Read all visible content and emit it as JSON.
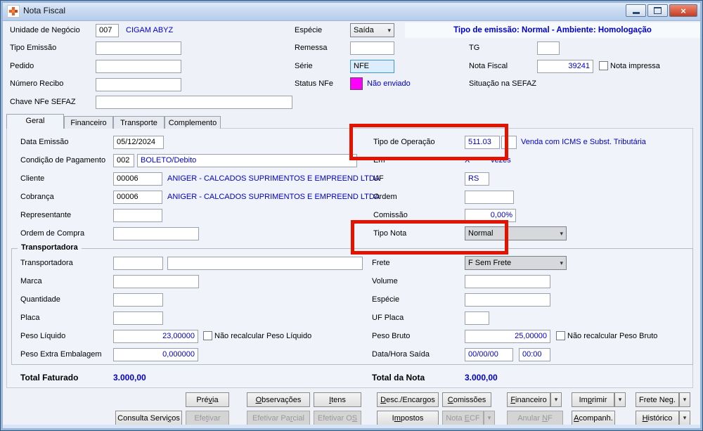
{
  "window": {
    "title": "Nota Fiscal",
    "banner": "Tipo de emissão: Normal - Ambiente: Homologação"
  },
  "header": {
    "unidade_label": "Unidade de Negócio",
    "unidade_code": "007",
    "unidade_name": "CIGAM ABYZ",
    "especie_label": "Espécie",
    "especie_value": "Saída",
    "tipo_emissao_label": "Tipo Emissão",
    "tipo_emissao_value": "",
    "remessa_label": "Remessa",
    "remessa_value": "",
    "tg_label": "TG",
    "tg_value": "",
    "pedido_label": "Pedido",
    "pedido_value": "",
    "serie_label": "Série",
    "serie_value": "NFE",
    "nota_fiscal_label": "Nota Fiscal",
    "nota_fiscal_value": "39241",
    "nota_impressa_label": "Nota impressa",
    "numero_recibo_label": "Número Recibo",
    "numero_recibo_value": "",
    "status_nfe_label": "Status NFe",
    "status_nfe_value": "Não enviado",
    "situacao_label": "Situação na SEFAZ",
    "chave_label": "Chave NFe SEFAZ",
    "chave_value": ""
  },
  "tabs": {
    "items": [
      "Geral",
      "Financeiro",
      "Transporte",
      "Complemento"
    ],
    "active": "Geral"
  },
  "geral": {
    "data_emissao_label": "Data Emissão",
    "data_emissao_value": "05/12/2024",
    "tipo_operacao_label": "Tipo de Operação",
    "tipo_operacao_code": "511.03",
    "tipo_operacao_extra": "",
    "tipo_operacao_desc": "Venda com ICMS e Subst. Tributária",
    "condicao_label": "Condição de Pagamento",
    "condicao_code": "002",
    "condicao_desc": "BOLETO/Debito",
    "em_label": "Em",
    "em_x": "X",
    "em_vezes": "vezes",
    "cliente_label": "Cliente",
    "cliente_code": "00006",
    "cliente_name": "ANIGER - CALCADOS SUPRIMENTOS E EMPREEND LTDA",
    "uf_label": "UF",
    "uf_value": "RS",
    "cobranca_label": "Cobrança",
    "cobranca_code": "00006",
    "cobranca_name": "ANIGER - CALCADOS SUPRIMENTOS E EMPREEND LTDA",
    "ordem_label": "Ordem",
    "ordem_value": "",
    "representante_label": "Representante",
    "representante_value": "",
    "comissao_label": "Comissão",
    "comissao_value": "0,00%",
    "ordem_compra_label": "Ordem de Compra",
    "ordem_compra_value": "",
    "tipo_nota_label": "Tipo Nota",
    "tipo_nota_value": "Normal"
  },
  "transportadora": {
    "group_title": "Transportadora",
    "transportadora_label": "Transportadora",
    "transportadora_code": "",
    "transportadora_name": "",
    "frete_label": "Frete",
    "frete_value": "F Sem Frete",
    "marca_label": "Marca",
    "marca_value": "",
    "volume_label": "Volume",
    "volume_value": "",
    "quantidade_label": "Quantidade",
    "quantidade_value": "",
    "especie2_label": "Espécie",
    "especie2_value": "",
    "placa_label": "Placa",
    "placa_value": "",
    "uf_placa_label": "UF Placa",
    "uf_placa_value": "",
    "peso_liquido_label": "Peso Líquido",
    "peso_liquido_value": "23,00000",
    "peso_liquido_check": "Não recalcular Peso Líquido",
    "peso_bruto_label": "Peso Bruto",
    "peso_bruto_value": "25,00000",
    "peso_bruto_check": "Não recalcular Peso Bruto",
    "peso_extra_label": "Peso Extra Embalagem",
    "peso_extra_value": "0,000000",
    "data_saida_label": "Data/Hora Saída",
    "data_saida_value": "00/00/00",
    "hora_saida_value": "00:00"
  },
  "totais": {
    "faturado_label": "Total Faturado",
    "faturado_value": "3.000,00",
    "nota_label": "Total da Nota",
    "nota_value": "3.000,00"
  },
  "footer": {
    "row1": [
      {
        "name": "previa",
        "label": "Prévia",
        "mnemonic": 3,
        "disabled": false,
        "dropdown": false
      },
      {
        "name": "observacoes",
        "label": "Observações",
        "mnemonic": 0,
        "disabled": false,
        "dropdown": false
      },
      {
        "name": "itens",
        "label": "Itens",
        "mnemonic": 0,
        "disabled": false,
        "dropdown": false
      },
      {
        "name": "desc-encargos",
        "label": "Desc./Encargos",
        "mnemonic": 0,
        "disabled": false,
        "dropdown": false
      },
      {
        "name": "comissoes",
        "label": "Comissões",
        "mnemonic": 0,
        "disabled": false,
        "dropdown": false
      },
      {
        "name": "financeiro",
        "label": "Financeiro",
        "mnemonic": 0,
        "disabled": false,
        "dropdown": true
      },
      {
        "name": "imprimir",
        "label": "Imprimir",
        "mnemonic": 2,
        "disabled": false,
        "dropdown": true
      },
      {
        "name": "frete-neg",
        "label": "Frete Neg.",
        "mnemonic": 8,
        "disabled": false,
        "dropdown": true
      }
    ],
    "row2": [
      {
        "name": "consulta-servicos",
        "label": "Consulta Serviços",
        "mnemonic": 14,
        "disabled": false,
        "dropdown": false
      },
      {
        "name": "efetivar",
        "label": "Efetivar",
        "mnemonic": 3,
        "disabled": true,
        "dropdown": false
      },
      {
        "name": "efetivar-parcial",
        "label": "Efetivar Parcial",
        "mnemonic": 11,
        "disabled": true,
        "dropdown": false
      },
      {
        "name": "efetivar-os",
        "label": "Efetivar OS",
        "mnemonic": 10,
        "disabled": true,
        "dropdown": false
      },
      {
        "name": "impostos",
        "label": "Impostos",
        "mnemonic": 1,
        "disabled": false,
        "dropdown": false
      },
      {
        "name": "nota-ecf",
        "label": "Nota ECF",
        "mnemonic": 5,
        "disabled": true,
        "dropdown": true
      },
      {
        "name": "anular-nf",
        "label": "Anular NF",
        "mnemonic": 7,
        "disabled": true,
        "dropdown": false
      },
      {
        "name": "acompanh",
        "label": "Acompanh.",
        "mnemonic": 0,
        "disabled": false,
        "dropdown": false
      },
      {
        "name": "historico",
        "label": "Histórico",
        "mnemonic": 0,
        "disabled": false,
        "dropdown": true
      }
    ]
  },
  "colors": {
    "value_blue": "#0000cc",
    "status_magenta": "#ff00ff",
    "annotation_red": "#e41300"
  }
}
